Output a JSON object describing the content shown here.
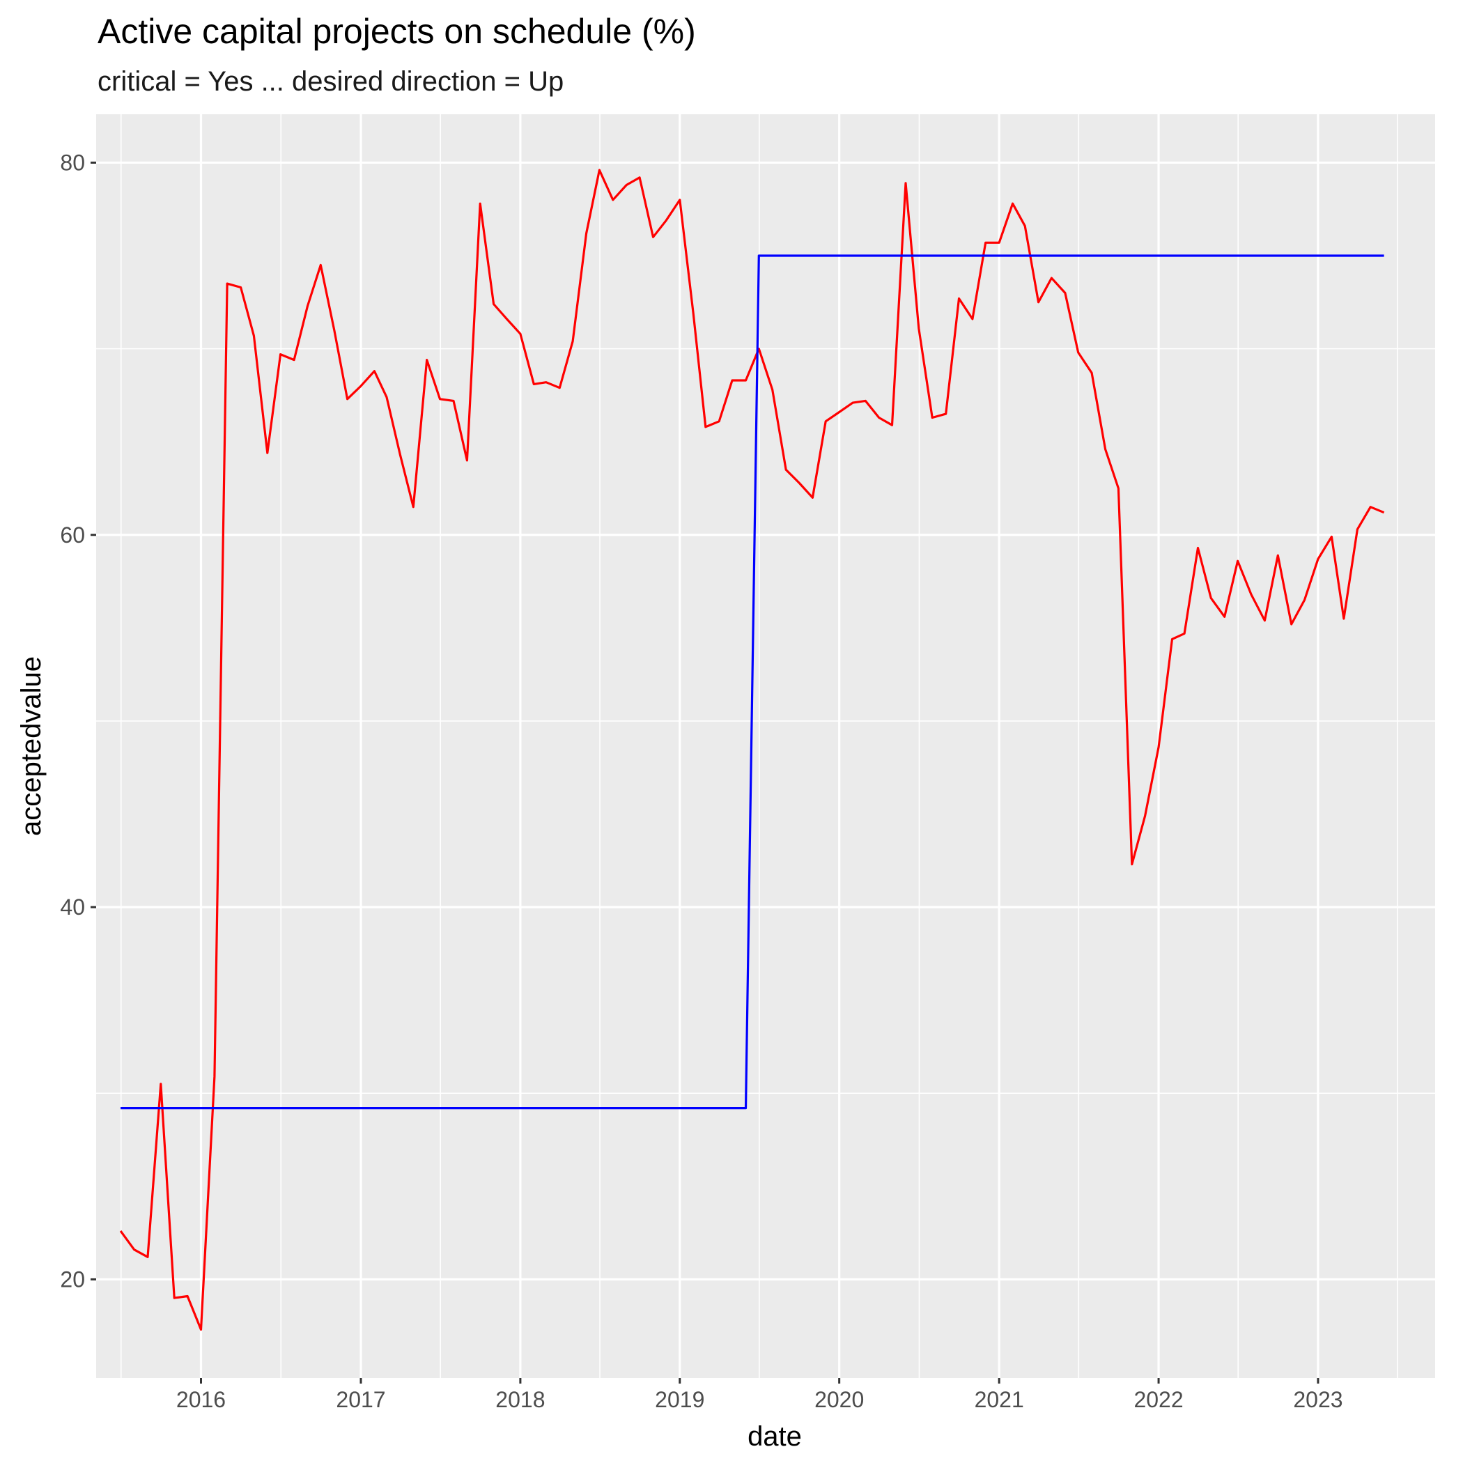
{
  "chart_data": {
    "type": "line",
    "title": "Active capital projects on schedule (%)",
    "subtitle": "critical = Yes ... desired direction = Up",
    "xlabel": "date",
    "ylabel": "acceptedvalue",
    "xlim": [
      "2015-05-06",
      "2023-09-26"
    ],
    "ylim": [
      14.7,
      82.6
    ],
    "x_ticks": [
      "2016",
      "2017",
      "2018",
      "2019",
      "2020",
      "2021",
      "2022",
      "2023"
    ],
    "y_ticks": [
      20,
      40,
      60,
      80
    ],
    "grid": true,
    "legend": "none",
    "colors": {
      "panel": "#EBEBEB",
      "grid": "#FFFFFF"
    },
    "series": [
      {
        "color": "#FF0000",
        "points": [
          [
            "2015-07-01",
            22.6
          ],
          [
            "2015-08-01",
            21.6
          ],
          [
            "2015-09-01",
            21.2
          ],
          [
            "2015-10-01",
            30.5
          ],
          [
            "2015-11-01",
            19.0
          ],
          [
            "2015-12-01",
            19.1
          ],
          [
            "2016-01-01",
            17.3
          ],
          [
            "2016-02-01",
            30.9
          ],
          [
            "2016-03-01",
            73.5
          ],
          [
            "2016-04-01",
            73.3
          ],
          [
            "2016-05-01",
            70.7
          ],
          [
            "2016-06-01",
            64.4
          ],
          [
            "2016-07-01",
            69.7
          ],
          [
            "2016-08-01",
            69.4
          ],
          [
            "2016-09-01",
            72.3
          ],
          [
            "2016-10-01",
            74.5
          ],
          [
            "2016-11-01",
            71.0
          ],
          [
            "2016-12-01",
            67.3
          ],
          [
            "2017-01-01",
            68.0
          ],
          [
            "2017-02-01",
            68.8
          ],
          [
            "2017-03-01",
            67.4
          ],
          [
            "2017-04-01",
            64.3
          ],
          [
            "2017-05-01",
            61.5
          ],
          [
            "2017-06-01",
            69.4
          ],
          [
            "2017-07-01",
            67.3
          ],
          [
            "2017-08-01",
            67.2
          ],
          [
            "2017-09-01",
            64.0
          ],
          [
            "2017-10-01",
            77.8
          ],
          [
            "2017-11-01",
            72.4
          ],
          [
            "2017-12-01",
            71.6
          ],
          [
            "2018-01-01",
            70.8
          ],
          [
            "2018-02-01",
            68.1
          ],
          [
            "2018-03-01",
            68.2
          ],
          [
            "2018-04-01",
            67.9
          ],
          [
            "2018-05-01",
            70.4
          ],
          [
            "2018-06-01",
            76.2
          ],
          [
            "2018-07-01",
            79.6
          ],
          [
            "2018-08-01",
            78.0
          ],
          [
            "2018-09-01",
            78.8
          ],
          [
            "2018-10-01",
            79.2
          ],
          [
            "2018-11-01",
            76.0
          ],
          [
            "2018-12-01",
            76.9
          ],
          [
            "2019-01-01",
            78.0
          ],
          [
            "2019-02-01",
            71.9
          ],
          [
            "2019-03-01",
            65.8
          ],
          [
            "2019-04-01",
            66.1
          ],
          [
            "2019-05-01",
            68.3
          ],
          [
            "2019-06-01",
            68.3
          ],
          [
            "2019-07-01",
            70.0
          ],
          [
            "2019-08-01",
            67.8
          ],
          [
            "2019-09-01",
            63.5
          ],
          [
            "2019-10-01",
            62.8
          ],
          [
            "2019-11-01",
            62.0
          ],
          [
            "2019-12-01",
            66.1
          ],
          [
            "2020-01-01",
            66.6
          ],
          [
            "2020-02-01",
            67.1
          ],
          [
            "2020-03-01",
            67.2
          ],
          [
            "2020-04-01",
            66.3
          ],
          [
            "2020-05-01",
            65.9
          ],
          [
            "2020-06-01",
            78.9
          ],
          [
            "2020-07-01",
            71.1
          ],
          [
            "2020-08-01",
            66.3
          ],
          [
            "2020-09-01",
            66.5
          ],
          [
            "2020-10-01",
            72.7
          ],
          [
            "2020-11-01",
            71.6
          ],
          [
            "2020-12-01",
            75.7
          ],
          [
            "2021-01-01",
            75.7
          ],
          [
            "2021-02-01",
            77.8
          ],
          [
            "2021-03-01",
            76.6
          ],
          [
            "2021-04-01",
            72.5
          ],
          [
            "2021-05-01",
            73.8
          ],
          [
            "2021-06-01",
            73.0
          ],
          [
            "2021-07-01",
            69.8
          ],
          [
            "2021-08-01",
            68.7
          ],
          [
            "2021-09-01",
            64.6
          ],
          [
            "2021-10-01",
            62.5
          ],
          [
            "2021-11-01",
            42.3
          ],
          [
            "2021-12-01",
            44.9
          ],
          [
            "2022-01-01",
            48.6
          ],
          [
            "2022-02-01",
            54.4
          ],
          [
            "2022-03-01",
            54.7
          ],
          [
            "2022-04-01",
            59.3
          ],
          [
            "2022-05-01",
            56.6
          ],
          [
            "2022-06-01",
            55.6
          ],
          [
            "2022-07-01",
            58.6
          ],
          [
            "2022-08-01",
            56.8
          ],
          [
            "2022-09-01",
            55.4
          ],
          [
            "2022-10-01",
            58.9
          ],
          [
            "2022-11-01",
            55.2
          ],
          [
            "2022-12-01",
            56.5
          ],
          [
            "2023-01-01",
            58.7
          ],
          [
            "2023-02-01",
            59.9
          ],
          [
            "2023-03-01",
            55.5
          ],
          [
            "2023-04-01",
            60.3
          ],
          [
            "2023-05-01",
            61.5
          ],
          [
            "2023-06-01",
            61.2
          ]
        ]
      },
      {
        "color": "#0000FF",
        "points": [
          [
            "2015-07-01",
            29.2
          ],
          [
            "2019-06-01",
            29.2
          ],
          [
            "2019-07-01",
            75.0
          ],
          [
            "2023-06-01",
            75.0
          ]
        ]
      }
    ]
  }
}
